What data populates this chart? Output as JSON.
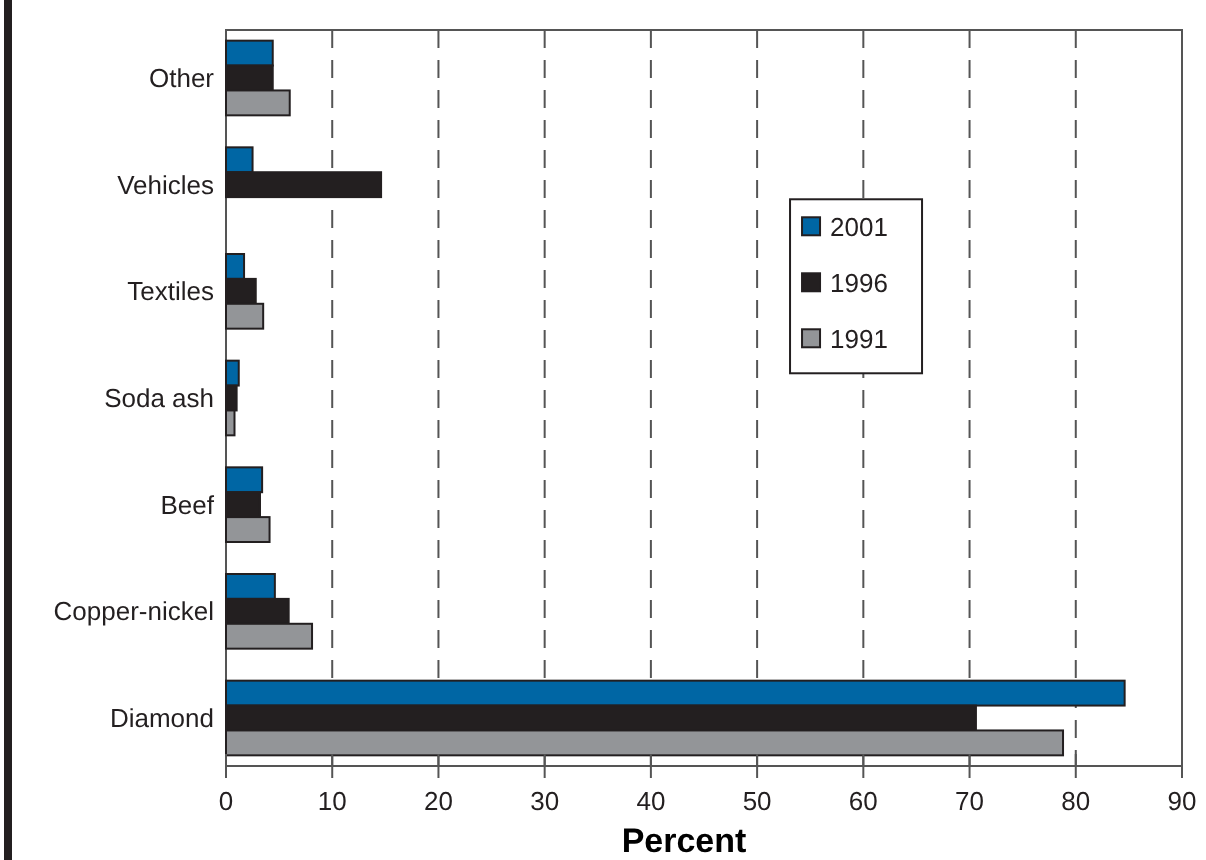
{
  "chart_data": {
    "type": "bar",
    "orientation": "horizontal",
    "xlabel": "Percent",
    "categories": [
      "Other",
      "Vehicles",
      "Textiles",
      "Soda ash",
      "Beef",
      "Copper-nickel",
      "Diamond"
    ],
    "series": [
      {
        "name": "2001",
        "color": "#0066a4",
        "values": [
          4.4,
          2.5,
          1.7,
          1.2,
          3.4,
          4.6,
          84.6
        ]
      },
      {
        "name": "1996",
        "color": "#231f20",
        "values": [
          4.4,
          14.6,
          2.8,
          1.0,
          3.2,
          5.9,
          70.6
        ]
      },
      {
        "name": "1991",
        "color": "#939598",
        "values": [
          6.0,
          null,
          3.5,
          0.8,
          4.1,
          8.1,
          78.8
        ]
      }
    ],
    "xlim": [
      0,
      90
    ],
    "xticks": [
      0,
      10,
      20,
      30,
      40,
      50,
      60,
      70,
      80,
      90
    ],
    "grid": "x",
    "legend": "right"
  }
}
